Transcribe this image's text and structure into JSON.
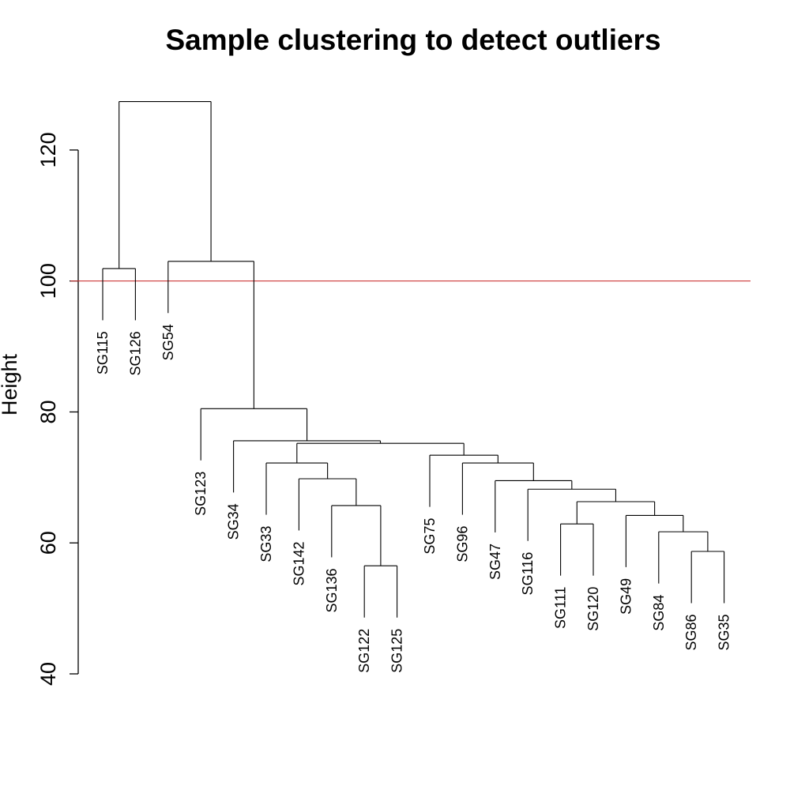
{
  "chart_data": {
    "type": "dendrogram",
    "title": "Sample clustering to detect outliers",
    "xlabel": "",
    "ylabel": "Height",
    "ylim": [
      40,
      130
    ],
    "yticks": [
      40,
      60,
      80,
      100,
      120
    ],
    "cut_height": 100,
    "cut_color": "#cc3333",
    "leaves": [
      "SG115",
      "SG126",
      "SG54",
      "SG123",
      "SG34",
      "SG33",
      "SG142",
      "SG136",
      "SG122",
      "SG125",
      "SG75",
      "SG96",
      "SG47",
      "SG116",
      "SG111",
      "SG120",
      "SG49",
      "SG84",
      "SG86",
      "SG35"
    ],
    "merges": [
      {
        "id": "m1",
        "left": "SG122",
        "right": "SG125",
        "height": 56.5
      },
      {
        "id": "m2",
        "left": "SG136",
        "right": "m1",
        "height": 65.7
      },
      {
        "id": "m3",
        "left": "SG142",
        "right": "m2",
        "height": 69.8
      },
      {
        "id": "m4",
        "left": "SG33",
        "right": "m3",
        "height": 72.2
      },
      {
        "id": "m5",
        "left": "SG86",
        "right": "SG35",
        "height": 58.7
      },
      {
        "id": "m6",
        "left": "SG84",
        "right": "m5",
        "height": 61.7
      },
      {
        "id": "m7",
        "left": "SG49",
        "right": "m6",
        "height": 64.2
      },
      {
        "id": "m8",
        "left": "SG111",
        "right": "SG120",
        "height": 62.9
      },
      {
        "id": "m9",
        "left": "m8",
        "right": "m7",
        "height": 66.3
      },
      {
        "id": "m10",
        "left": "SG116",
        "right": "m9",
        "height": 68.2
      },
      {
        "id": "m11",
        "left": "SG47",
        "right": "m10",
        "height": 69.5
      },
      {
        "id": "m12",
        "left": "SG96",
        "right": "m11",
        "height": 72.2
      },
      {
        "id": "m13",
        "left": "SG75",
        "right": "m12",
        "height": 73.4
      },
      {
        "id": "m14",
        "left": "m4",
        "right": "m13",
        "height": 75.2
      },
      {
        "id": "m15",
        "left": "SG34",
        "right": "m14",
        "height": 75.6
      },
      {
        "id": "m16",
        "left": "SG123",
        "right": "m15",
        "height": 80.5
      },
      {
        "id": "m17",
        "left": "SG54",
        "right": "m16",
        "height": 103.0
      },
      {
        "id": "m18",
        "left": "SG115",
        "right": "SG126",
        "height": 101.9
      },
      {
        "id": "m19",
        "left": "m18",
        "right": "m17",
        "height": 127.4
      }
    ],
    "leaf_hang": 7.9
  }
}
